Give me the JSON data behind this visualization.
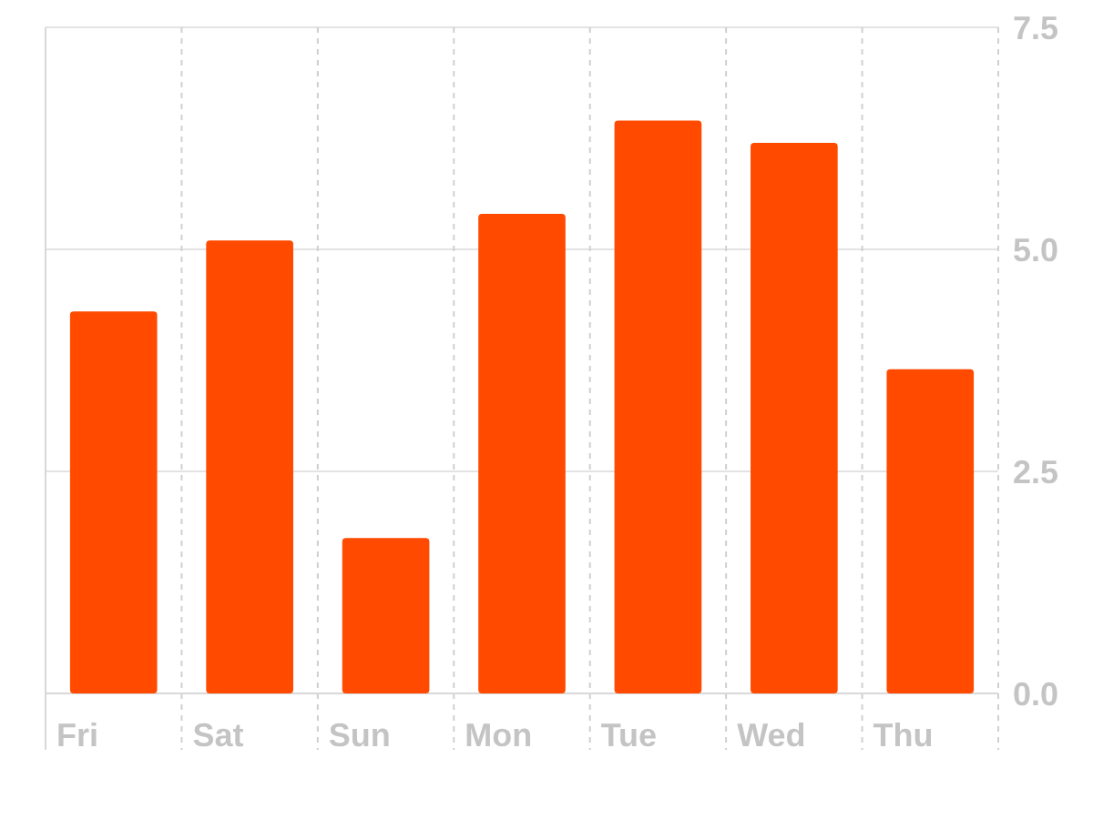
{
  "chart_data": {
    "type": "bar",
    "categories": [
      "Fri",
      "Sat",
      "Sun",
      "Mon",
      "Tue",
      "Wed",
      "Thu"
    ],
    "values": [
      4.3,
      5.1,
      1.75,
      5.4,
      6.45,
      6.2,
      3.65
    ],
    "color": "#ff4a00",
    "ylim": [
      0,
      7.5
    ],
    "yticks": [
      {
        "value": 0,
        "label": "0.0"
      },
      {
        "value": 2.5,
        "label": "2.5"
      },
      {
        "value": 5,
        "label": "5.0"
      },
      {
        "value": 7.5,
        "label": "7.5"
      }
    ],
    "grid": true
  }
}
